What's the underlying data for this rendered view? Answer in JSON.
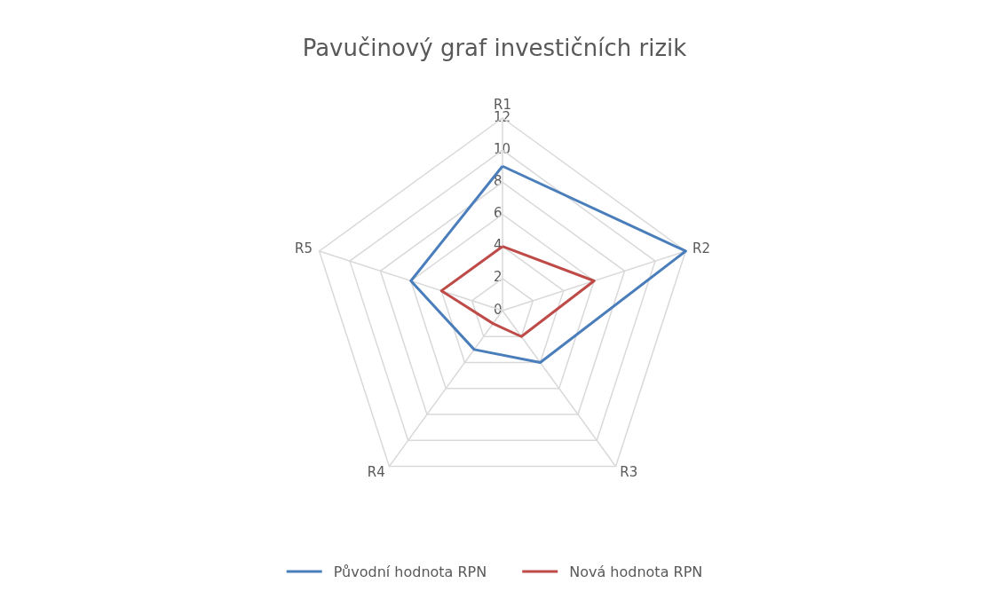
{
  "chart_data": {
    "type": "radar",
    "title": "Pavučinový graf investičních rizik",
    "categories": [
      "R1",
      "R2",
      "R3",
      "R4",
      "R5"
    ],
    "series": [
      {
        "name": "Původní hodnota RPN",
        "color": "#4a7ebb",
        "values": [
          9,
          12,
          4,
          3,
          6
        ]
      },
      {
        "name": "Nová hodnota RPN",
        "color": "#be4b48",
        "values": [
          4,
          6,
          2,
          1,
          4
        ]
      }
    ],
    "ylim": [
      0,
      12
    ],
    "yticks": [
      0,
      2,
      4,
      6,
      8,
      10,
      12
    ],
    "grid": true,
    "legend": "bottom",
    "marker": "none"
  }
}
